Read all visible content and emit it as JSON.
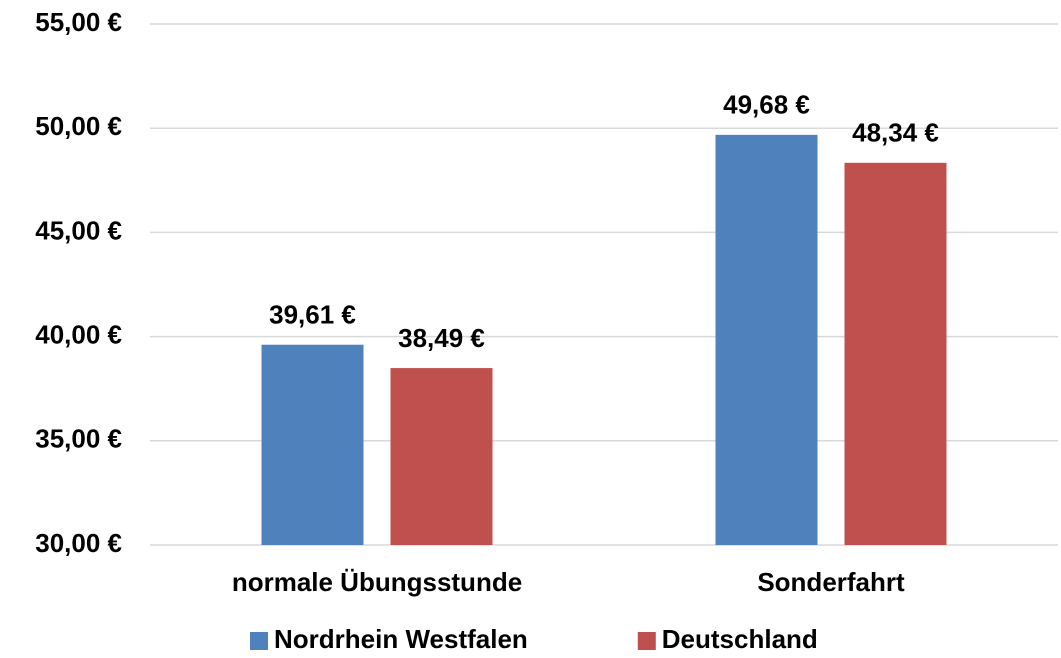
{
  "chart_data": {
    "type": "bar",
    "categories": [
      "normale Übungsstunde",
      "Sonderfahrt"
    ],
    "series": [
      {
        "name": "Nordrhein Westfalen",
        "color": "#4f81bd",
        "values": [
          39.61,
          49.68
        ],
        "value_labels": [
          "39,61 €",
          "49,68 €"
        ]
      },
      {
        "name": "Deutschland",
        "color": "#c0504d",
        "values": [
          38.49,
          48.34
        ],
        "value_labels": [
          "38,49 €",
          "48,34 €"
        ]
      }
    ],
    "ylim": [
      30,
      55
    ],
    "yticks": [
      {
        "value": 30,
        "label": "30,00 €"
      },
      {
        "value": 35,
        "label": "35,00 €"
      },
      {
        "value": 40,
        "label": "40,00 €"
      },
      {
        "value": 45,
        "label": "45,00 €"
      },
      {
        "value": 50,
        "label": "50,00 €"
      },
      {
        "value": 55,
        "label": "55,00 €"
      }
    ],
    "grid": true,
    "legend": "bottom"
  }
}
